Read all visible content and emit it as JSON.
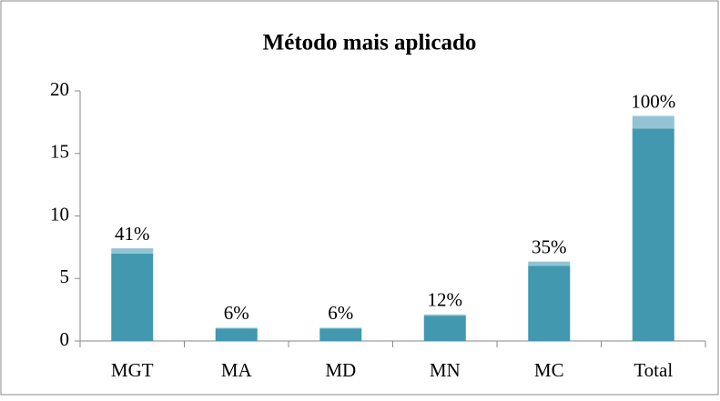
{
  "chart_data": {
    "type": "bar",
    "stacked": true,
    "title": "Método mais aplicado",
    "categories": [
      "MGT",
      "MA",
      "MD",
      "MN",
      "MC",
      "Total"
    ],
    "series": [
      {
        "color": "#4198af",
        "values": [
          7,
          1,
          1,
          2,
          6,
          17
        ]
      },
      {
        "color": "#93c3d3",
        "values": [
          0.41,
          0.06,
          0.06,
          0.12,
          0.35,
          1.0
        ],
        "value_labels": [
          "41%",
          "6%",
          "6%",
          "12%",
          "35%",
          "100%"
        ]
      }
    ],
    "ylim": [
      0,
      20
    ],
    "yticks": [
      0,
      5,
      10,
      15,
      20
    ],
    "grid": false
  }
}
